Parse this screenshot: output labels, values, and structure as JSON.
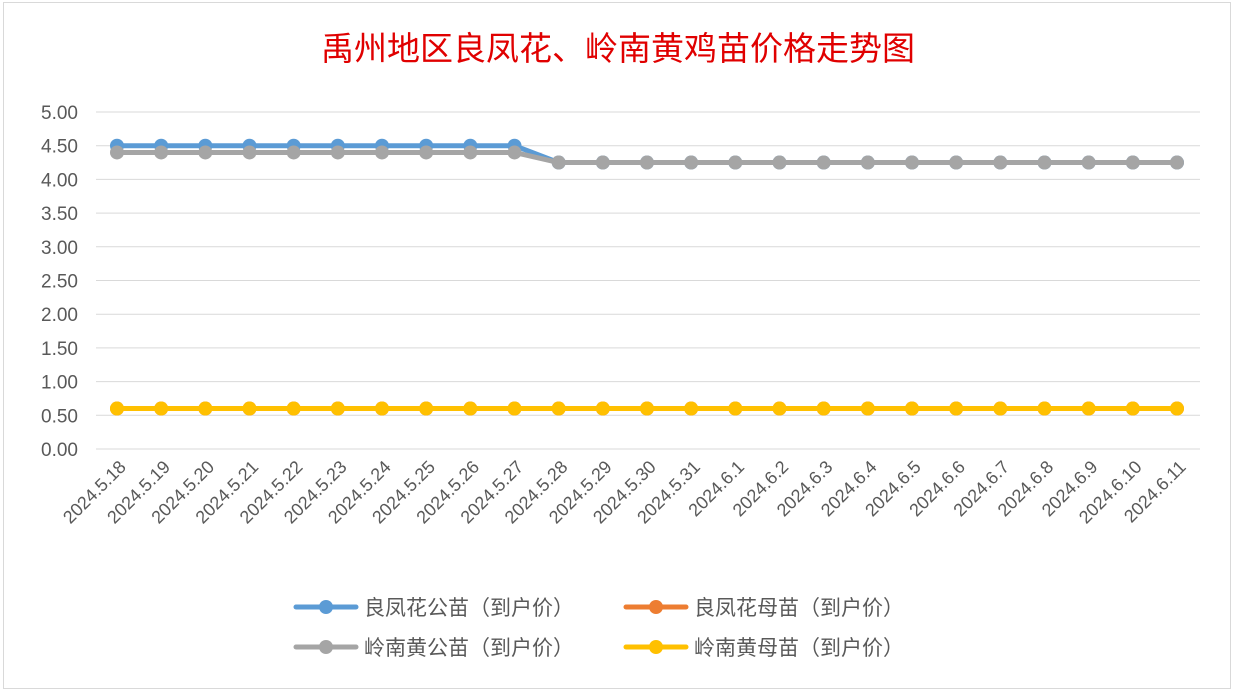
{
  "chart_data": {
    "type": "line",
    "title": "禹州地区良凤花、岭南黄鸡苗价格走势图",
    "xlabel": "",
    "ylabel": "",
    "ylim": [
      0,
      5
    ],
    "yticks": [
      "0.00",
      "0.50",
      "1.00",
      "1.50",
      "2.00",
      "2.50",
      "3.00",
      "3.50",
      "4.00",
      "4.50",
      "5.00"
    ],
    "grid": true,
    "legend_position": "bottom",
    "categories": [
      "2024.5.18",
      "2024.5.19",
      "2024.5.20",
      "2024.5.21",
      "2024.5.22",
      "2024.5.23",
      "2024.5.24",
      "2024.5.25",
      "2024.5.26",
      "2024.5.27",
      "2024.5.28",
      "2024.5.29",
      "2024.5.30",
      "2024.5.31",
      "2024.6.1",
      "2024.6.2",
      "2024.6.3",
      "2024.6.4",
      "2024.6.5",
      "2024.6.6",
      "2024.6.7",
      "2024.6.8",
      "2024.6.9",
      "2024.6.10",
      "2024.6.11"
    ],
    "series": [
      {
        "name": "良凤花公苗（到户价）",
        "color": "#5b9bd5",
        "values": [
          4.5,
          4.5,
          4.5,
          4.5,
          4.5,
          4.5,
          4.5,
          4.5,
          4.5,
          4.5,
          4.25,
          4.25,
          4.25,
          4.25,
          4.25,
          4.25,
          4.25,
          4.25,
          4.25,
          4.25,
          4.25,
          4.25,
          4.25,
          4.25,
          4.25
        ]
      },
      {
        "name": "良凤花母苗（到户价）",
        "color": "#ed7d31",
        "values": [
          0.6,
          0.6,
          0.6,
          0.6,
          0.6,
          0.6,
          0.6,
          0.6,
          0.6,
          0.6,
          0.6,
          0.6,
          0.6,
          0.6,
          0.6,
          0.6,
          0.6,
          0.6,
          0.6,
          0.6,
          0.6,
          0.6,
          0.6,
          0.6,
          0.6
        ]
      },
      {
        "name": "岭南黄公苗（到户价）",
        "color": "#a5a5a5",
        "values": [
          4.4,
          4.4,
          4.4,
          4.4,
          4.4,
          4.4,
          4.4,
          4.4,
          4.4,
          4.4,
          4.25,
          4.25,
          4.25,
          4.25,
          4.25,
          4.25,
          4.25,
          4.25,
          4.25,
          4.25,
          4.25,
          4.25,
          4.25,
          4.25,
          4.25
        ]
      },
      {
        "name": "岭南黄母苗（到户价）",
        "color": "#ffc000",
        "values": [
          0.6,
          0.6,
          0.6,
          0.6,
          0.6,
          0.6,
          0.6,
          0.6,
          0.6,
          0.6,
          0.6,
          0.6,
          0.6,
          0.6,
          0.6,
          0.6,
          0.6,
          0.6,
          0.6,
          0.6,
          0.6,
          0.6,
          0.6,
          0.6,
          0.6
        ]
      }
    ]
  },
  "colors": {
    "title": "#e00000",
    "gridline": "#d9d9d9",
    "axis_text": "#595959"
  }
}
